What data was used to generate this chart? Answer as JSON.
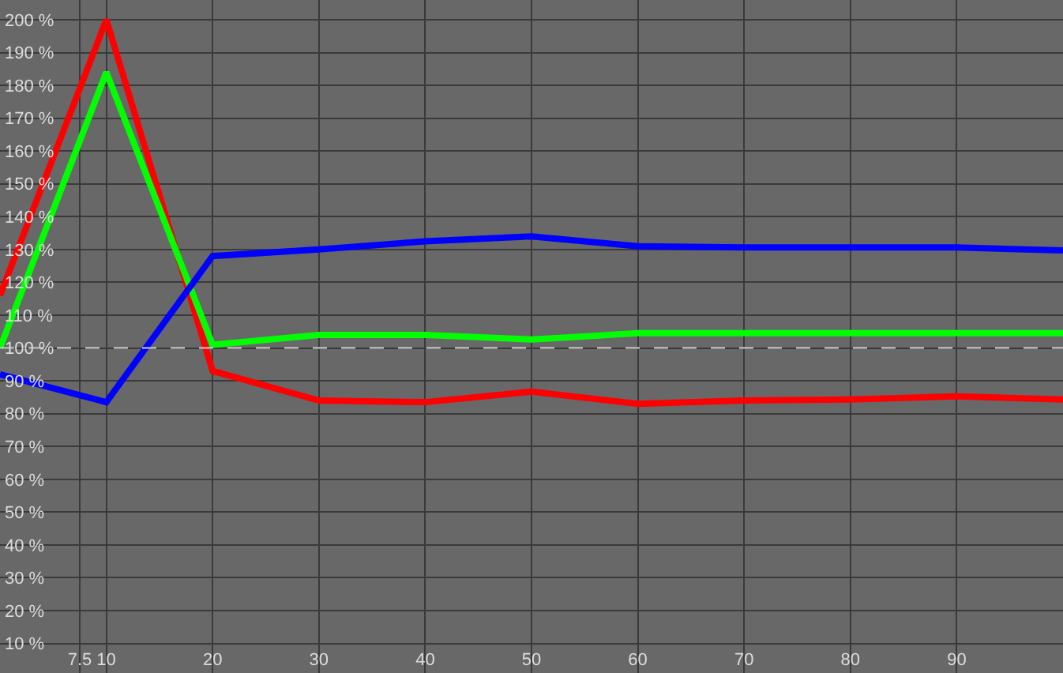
{
  "chart_data": {
    "type": "line",
    "x": [
      0,
      10,
      20,
      30,
      40,
      50,
      60,
      70,
      80,
      90,
      100
    ],
    "series": [
      {
        "color": "#ff0000",
        "values": [
          116,
          200,
          93,
          84,
          83.5,
          86.7,
          83,
          84,
          84.3,
          85.3,
          84.3
        ]
      },
      {
        "color": "#00ff00",
        "values": [
          100,
          184,
          101,
          104,
          104,
          102.6,
          104.5,
          104.5,
          104.5,
          104.5,
          104.5
        ]
      },
      {
        "color": "#0000ff",
        "values": [
          92,
          83.5,
          128,
          130,
          132.5,
          134,
          131,
          130.6,
          130.6,
          130.6,
          129.7
        ]
      }
    ],
    "xlim": [
      0,
      100
    ],
    "xticks": [
      7.5,
      10,
      20,
      30,
      40,
      50,
      60,
      70,
      80,
      90
    ],
    "ylim": [
      1,
      206
    ],
    "yticks": [
      {
        "value": 10,
        "label": "10 %"
      },
      {
        "value": 20,
        "label": "20 %"
      },
      {
        "value": 30,
        "label": "30 %"
      },
      {
        "value": 40,
        "label": "40 %"
      },
      {
        "value": 50,
        "label": "50 %"
      },
      {
        "value": 60,
        "label": "60 %"
      },
      {
        "value": 70,
        "label": "70 %"
      },
      {
        "value": 80,
        "label": "80 %"
      },
      {
        "value": 90,
        "label": "90 %"
      },
      {
        "value": 100,
        "label": "100 %"
      },
      {
        "value": 110,
        "label": "110 %"
      },
      {
        "value": 120,
        "label": "120 %"
      },
      {
        "value": 130,
        "label": "130 %"
      },
      {
        "value": 140,
        "label": "140 %"
      },
      {
        "value": 150,
        "label": "150 %"
      },
      {
        "value": 160,
        "label": "160 %"
      },
      {
        "value": 170,
        "label": "170 %"
      },
      {
        "value": 180,
        "label": "180 %"
      },
      {
        "value": 190,
        "label": "190 %"
      },
      {
        "value": 200,
        "label": "200 %"
      }
    ],
    "ref_lines": [
      {
        "axis": "y",
        "value": 100,
        "color": "#d0d0d0",
        "line_style": "dashed"
      }
    ],
    "grid": true,
    "legend": false,
    "marker": "none",
    "line_style": "solid"
  }
}
